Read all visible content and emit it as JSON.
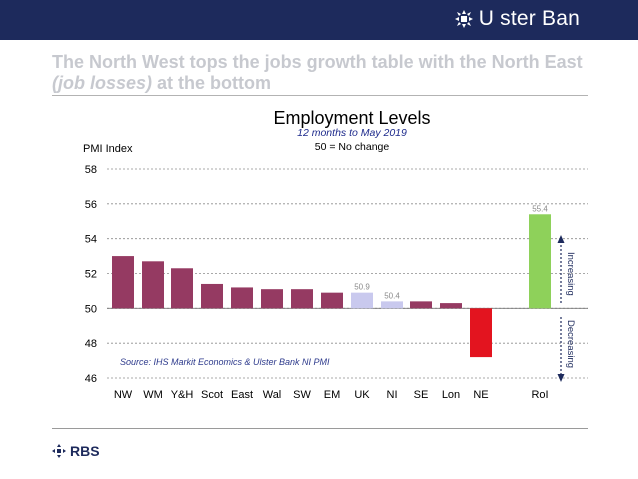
{
  "brand": {
    "name": "U ster Ban",
    "footer": "RBS"
  },
  "colors": {
    "header_bg": "#1d2a5c",
    "bar_primary": "#953a62",
    "bar_uk_ni": "#c9c9ee",
    "bar_negative": "#e3141f",
    "bar_roi": "#8ed15a",
    "arrow_blue": "#1d2a5c"
  },
  "headline": {
    "part1": "The North West tops the jobs growth table with the North East ",
    "part2": "(job losses)",
    "part3": " at the bottom"
  },
  "chart_data": {
    "type": "bar",
    "title": "Employment Levels",
    "subtitle": "12 months to May 2019",
    "note": "50 = No change",
    "ylabel": "PMI Index",
    "ylim": [
      46,
      58
    ],
    "yticks": [
      46,
      48,
      50,
      52,
      54,
      56,
      58
    ],
    "baseline": 50,
    "categories": [
      "NW",
      "WM",
      "Y&H",
      "Scot",
      "East",
      "Wal",
      "SW",
      "EM",
      "UK",
      "NI",
      "SE",
      "Lon",
      "NE",
      "RoI"
    ],
    "values": [
      53.0,
      52.7,
      52.3,
      51.4,
      51.2,
      51.1,
      51.1,
      50.9,
      50.9,
      50.4,
      50.4,
      50.3,
      47.2,
      55.4
    ],
    "data_labels": {
      "UK": "50.9",
      "NI": "50.4",
      "RoI": "55.4"
    },
    "source": "Source: IHS Markit Economics & Ulster Bank NI PMI",
    "annotations": {
      "up": "Increasing",
      "down": "Decreasing"
    }
  }
}
